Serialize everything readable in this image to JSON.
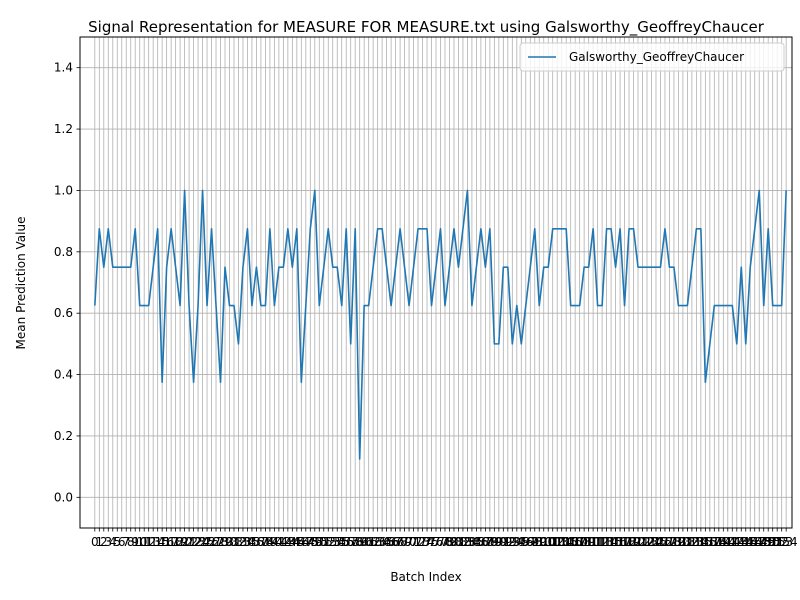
{
  "chart_data": {
    "type": "line",
    "title": "Signal Representation for MEASURE FOR MEASURE.txt using Galsworthy_GeoffreyChaucer",
    "xlabel": "Batch Index",
    "ylabel": "Mean Prediction Value",
    "ylim": [
      -0.1,
      1.5
    ],
    "yticks": [
      0.0,
      0.2,
      0.4,
      0.6,
      0.8,
      1.0,
      1.2,
      1.4
    ],
    "xlim": [
      -3.3,
      155.3
    ],
    "grid": true,
    "legend_position": "top-right",
    "series": [
      {
        "name": "Galsworthy_GeoffreyChaucer",
        "color": "#1f77b4",
        "x_start": 0,
        "values": [
          0.625,
          0.875,
          0.75,
          0.875,
          0.75,
          0.75,
          0.75,
          0.75,
          0.75,
          0.875,
          0.625,
          0.625,
          0.625,
          0.75,
          0.875,
          0.375,
          0.75,
          0.875,
          0.75,
          0.625,
          1.0,
          0.625,
          0.375,
          0.625,
          1.0,
          0.625,
          0.875,
          0.625,
          0.375,
          0.75,
          0.625,
          0.625,
          0.5,
          0.75,
          0.875,
          0.625,
          0.75,
          0.625,
          0.625,
          0.875,
          0.625,
          0.75,
          0.75,
          0.875,
          0.75,
          0.875,
          0.375,
          0.625,
          0.875,
          1.0,
          0.625,
          0.75,
          0.875,
          0.75,
          0.75,
          0.625,
          0.875,
          0.5,
          0.875,
          0.125,
          0.625,
          0.625,
          0.75,
          0.875,
          0.875,
          0.75,
          0.625,
          0.75,
          0.875,
          0.75,
          0.625,
          0.75,
          0.875,
          0.875,
          0.875,
          0.625,
          0.75,
          0.875,
          0.625,
          0.75,
          0.875,
          0.75,
          0.875,
          1.0,
          0.625,
          0.75,
          0.875,
          0.75,
          0.875,
          0.5,
          0.5,
          0.75,
          0.75,
          0.5,
          0.625,
          0.5,
          0.625,
          0.75,
          0.875,
          0.625,
          0.75,
          0.75,
          0.875,
          0.875,
          0.875,
          0.875,
          0.625,
          0.625,
          0.625,
          0.75,
          0.75,
          0.875,
          0.625,
          0.625,
          0.875,
          0.875,
          0.75,
          0.875,
          0.625,
          0.875,
          0.875,
          0.75,
          0.75,
          0.75,
          0.75,
          0.75,
          0.75,
          0.875,
          0.75,
          0.75,
          0.625,
          0.625,
          0.625,
          0.75,
          0.875,
          0.875,
          0.375,
          0.5,
          0.625,
          0.625,
          0.625,
          0.625,
          0.625,
          0.5,
          0.75,
          0.5,
          0.75,
          0.875,
          1.0,
          0.625,
          0.875,
          0.625,
          0.625,
          0.625,
          1.0
        ]
      }
    ]
  }
}
